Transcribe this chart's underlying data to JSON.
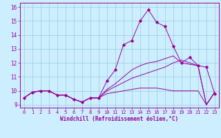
{
  "xlabel": "Windchill (Refroidissement éolien,°C)",
  "xlim": [
    -0.5,
    23.5
  ],
  "ylim": [
    8.8,
    16.3
  ],
  "yticks": [
    9,
    10,
    11,
    12,
    13,
    14,
    15,
    16
  ],
  "xticks": [
    0,
    1,
    2,
    3,
    4,
    5,
    6,
    7,
    8,
    9,
    10,
    11,
    12,
    13,
    14,
    15,
    16,
    17,
    18,
    19,
    20,
    21,
    22,
    23
  ],
  "bg_color": "#cceeff",
  "grid_color": "#99ccdd",
  "line_color": "#990099",
  "lines": [
    [
      9.5,
      9.9,
      10.0,
      10.0,
      9.7,
      9.7,
      9.4,
      9.2,
      9.5,
      9.5,
      10.7,
      11.5,
      13.3,
      13.6,
      15.0,
      15.8,
      14.9,
      14.6,
      13.2,
      12.0,
      12.4,
      11.8,
      11.7,
      9.8
    ],
    [
      9.5,
      9.9,
      10.0,
      10.0,
      9.7,
      9.7,
      9.4,
      9.2,
      9.5,
      9.5,
      10.1,
      10.5,
      11.0,
      11.5,
      11.8,
      12.0,
      12.1,
      12.3,
      12.5,
      12.0,
      11.9,
      11.8,
      9.0,
      9.9
    ],
    [
      9.5,
      9.9,
      10.0,
      10.0,
      9.7,
      9.7,
      9.4,
      9.2,
      9.5,
      9.5,
      10.0,
      10.3,
      10.6,
      10.9,
      11.1,
      11.3,
      11.5,
      11.7,
      12.0,
      12.2,
      12.0,
      11.8,
      9.0,
      9.9
    ],
    [
      9.5,
      9.9,
      10.0,
      10.0,
      9.7,
      9.7,
      9.4,
      9.2,
      9.5,
      9.5,
      9.8,
      9.9,
      10.0,
      10.1,
      10.2,
      10.2,
      10.2,
      10.1,
      10.0,
      10.0,
      10.0,
      10.0,
      9.0,
      9.9
    ]
  ]
}
